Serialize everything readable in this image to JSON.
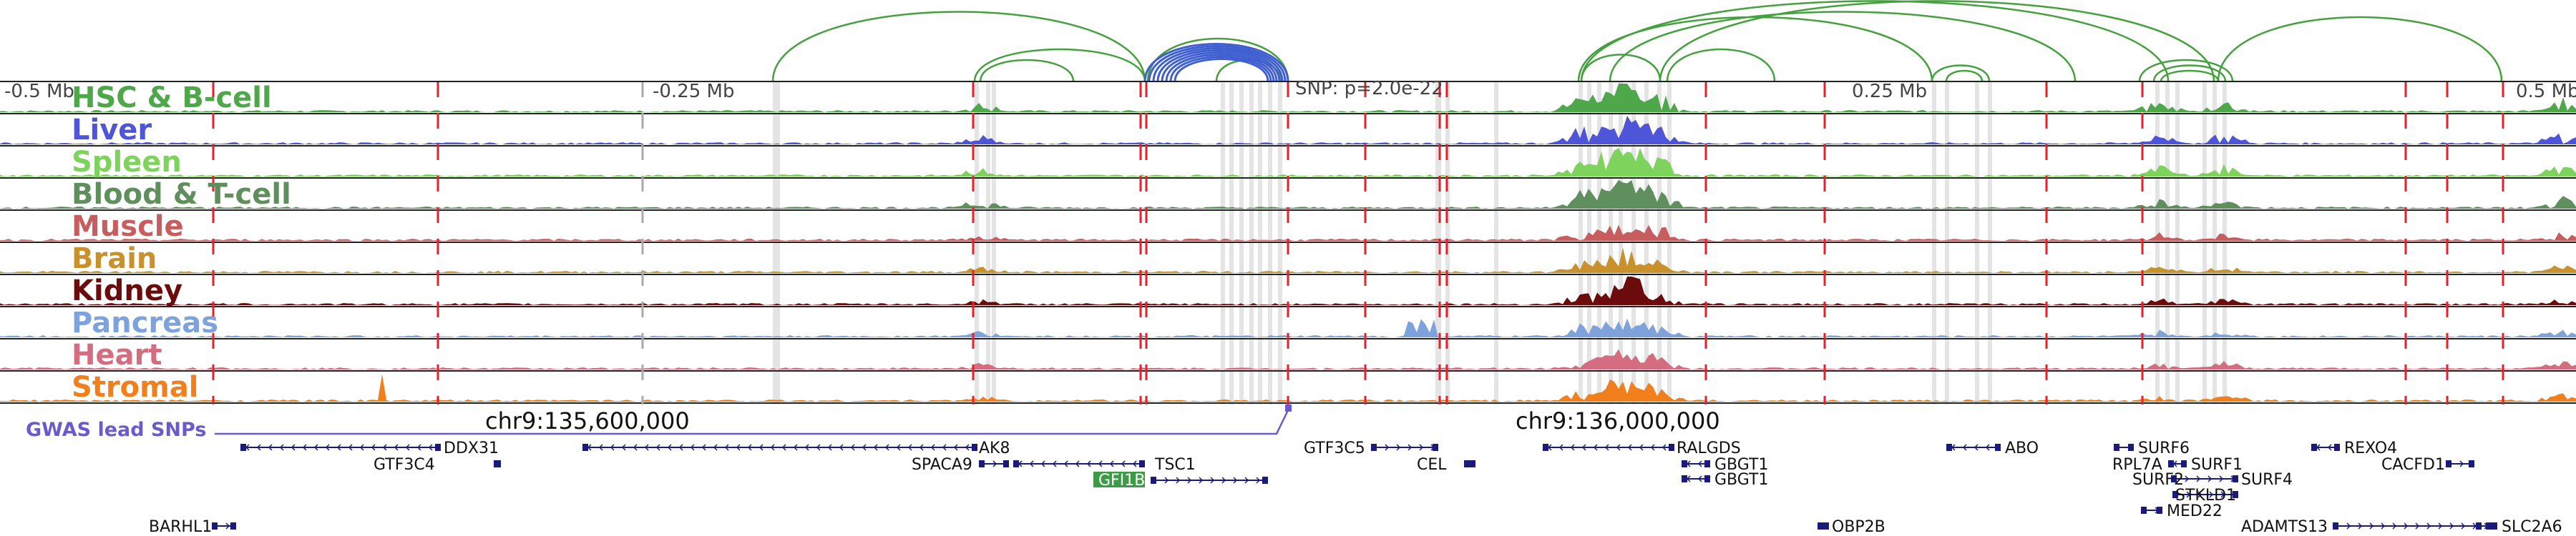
{
  "axis": {
    "ticks": [
      "-0.5 Mb",
      "-0.25 Mb",
      "0.25 Mb",
      "0.5 Mb"
    ],
    "snp_label": "SNP: p=2.0e-22",
    "chr_labels": [
      "chr9:135,600,000",
      "chr9:136,000,000"
    ]
  },
  "tracks": [
    {
      "label": "HSC & B-cell",
      "color": "#4ea84a"
    },
    {
      "label": "Liver",
      "color": "#4f55d8"
    },
    {
      "label": "Spleen",
      "color": "#7dd35b"
    },
    {
      "label": "Blood & T-cell",
      "color": "#5f8f5c"
    },
    {
      "label": "Muscle",
      "color": "#c85d5f"
    },
    {
      "label": "Brain",
      "color": "#c8912c"
    },
    {
      "label": "Kidney",
      "color": "#6b0b0b"
    },
    {
      "label": "Pancreas",
      "color": "#7ea3dc"
    },
    {
      "label": "Heart",
      "color": "#d36d7f"
    },
    {
      "label": "Stromal",
      "color": "#f07f1c"
    }
  ],
  "gwas": {
    "label": "GWAS lead SNPs",
    "color": "#6a5acd"
  },
  "genes": [
    "DDX31",
    "GTF3C4",
    "AK8",
    "SPACA9",
    "TSC1",
    "GFI1B",
    "GTF3C5",
    "CEL",
    "RALGDS",
    "GBGT1",
    "GBGT1",
    "ABO",
    "SURF6",
    "RPL7A",
    "SURF1",
    "SURF2",
    "SURF4",
    "STKLD1",
    "MED22",
    "REXO4",
    "CACFD1",
    "BARHL1",
    "OBP2B",
    "ADAMTS13",
    "SLC2A6"
  ],
  "highlight_gene": {
    "label": "GFI1B",
    "color": "#3d9a47"
  },
  "colors": {
    "red_marker": "#e8202a",
    "arc": "#45a03e",
    "arc_focus": "#3f5fd0",
    "gene": "#1a1a7a"
  }
}
